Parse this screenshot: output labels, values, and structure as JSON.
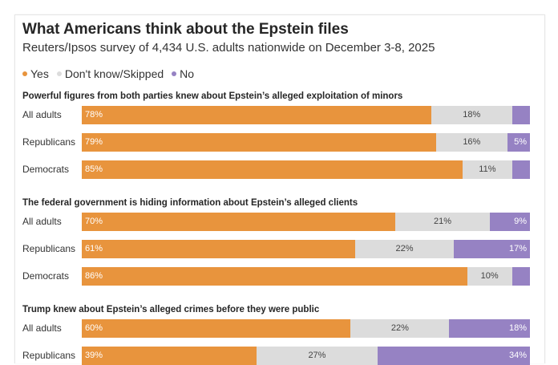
{
  "title": "What Americans think about the Epstein files",
  "subtitle": "Reuters/Ipsos survey of 4,434 U.S. adults nationwide on December 3-8, 2025",
  "legend": [
    {
      "label": "Yes",
      "color": "#e8943d"
    },
    {
      "label": "Don't know/Skipped",
      "color": "#dcdcdc"
    },
    {
      "label": "No",
      "color": "#9682c3"
    }
  ],
  "chart_data": {
    "type": "bar",
    "orientation": "horizontal",
    "stacked": true,
    "unit": "%",
    "series_names": [
      "Yes",
      "Don't know/Skipped",
      "No"
    ],
    "colors": {
      "yes": "#e8943d",
      "dk": "#dcdcdc",
      "no": "#9682c3"
    },
    "groups": [
      {
        "title": "Powerful figures from both parties knew about Epstein’s alleged exploitation of minors",
        "rows": [
          {
            "label": "All adults",
            "yes": 78,
            "dk": 18,
            "no": 4
          },
          {
            "label": "Republicans",
            "yes": 79,
            "dk": 16,
            "no": 5
          },
          {
            "label": "Democrats",
            "yes": 85,
            "dk": 11,
            "no": 4
          }
        ]
      },
      {
        "title": "The federal government is hiding information about Epstein’s alleged clients",
        "rows": [
          {
            "label": "All adults",
            "yes": 70,
            "dk": 21,
            "no": 9
          },
          {
            "label": "Republicans",
            "yes": 61,
            "dk": 22,
            "no": 17
          },
          {
            "label": "Democrats",
            "yes": 86,
            "dk": 10,
            "no": 4
          }
        ]
      },
      {
        "title": "Trump knew about Epstein’s alleged crimes before they were public",
        "rows": [
          {
            "label": "All adults",
            "yes": 60,
            "dk": 22,
            "no": 18
          },
          {
            "label": "Republicans",
            "yes": 39,
            "dk": 27,
            "no": 34
          }
        ]
      }
    ]
  }
}
